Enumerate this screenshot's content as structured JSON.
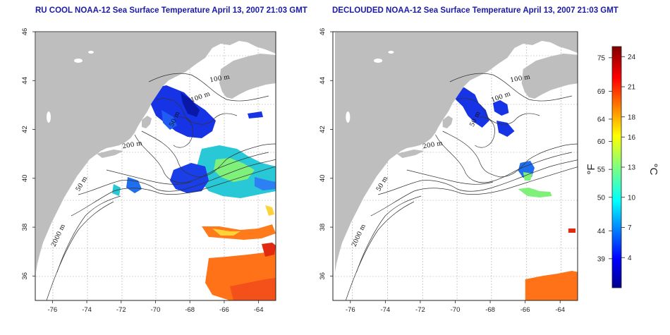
{
  "titles": {
    "left": "RU COOL NOAA-12 Sea Surface Temperature April 13, 2007 21:03 GMT",
    "right": "DECLOUDED NOAA-12 Sea Surface Temperature April 13, 2007 21:03 GMT"
  },
  "axes": {
    "lon_ticks": [
      -76,
      -74,
      -72,
      -70,
      -68,
      -66,
      -64
    ],
    "lon_labels": [
      "-76",
      "-74",
      "-72",
      "-70",
      "-68",
      "-66",
      "-64"
    ],
    "lat_ticks": [
      36,
      38,
      40,
      42,
      44,
      46
    ],
    "lat_labels": [
      "36",
      "38",
      "40",
      "42",
      "44",
      "46"
    ],
    "lon_range": [
      -77,
      -63
    ],
    "lat_range": [
      35,
      46
    ],
    "grid": true
  },
  "contours": {
    "left": [
      "100 m",
      "100 m",
      "50 m",
      "200 m",
      "50 m",
      "2000 m"
    ],
    "right": [
      "100 m",
      "100 m",
      "50 m",
      "200 m",
      "50 m",
      "2000 m"
    ]
  },
  "colorbar": {
    "fahrenheit_labels": [
      "75",
      "69",
      "64",
      "60",
      "55",
      "50",
      "44",
      "39"
    ],
    "fahrenheit_values": [
      75,
      69,
      64,
      60,
      55,
      50,
      44,
      39
    ],
    "celsius_labels": [
      "24",
      "21",
      "18",
      "16",
      "13",
      "10",
      "7",
      "4"
    ],
    "celsius_values": [
      24,
      21,
      18,
      16,
      13,
      10,
      7,
      4
    ],
    "unit_f": "°F",
    "unit_c": "°C",
    "range_c": [
      1,
      25
    ]
  },
  "colors": {
    "land": "#bebebe",
    "title": "#1a1aa6",
    "grid": "#aaaaaa"
  }
}
